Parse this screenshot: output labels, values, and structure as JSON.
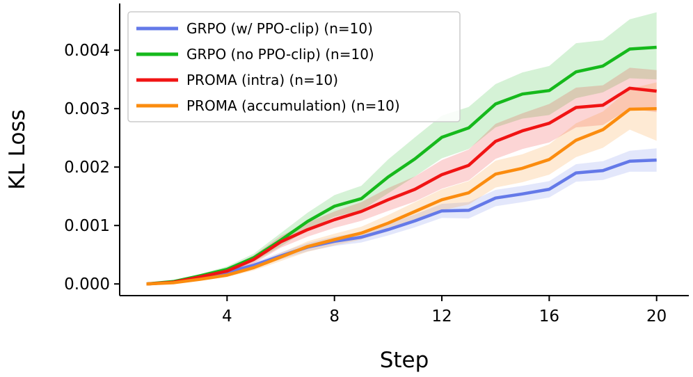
{
  "chart_data": {
    "type": "line",
    "xlabel": "Step",
    "ylabel": "KL Loss",
    "xlim": [
      0,
      21.2
    ],
    "ylim": [
      -0.0002,
      0.0048
    ],
    "xticks": [
      4,
      8,
      12,
      16,
      20
    ],
    "xtick_labels": [
      "4",
      "8",
      "12",
      "16",
      "20"
    ],
    "yticks": [
      0,
      0.001,
      0.002,
      0.003,
      0.004
    ],
    "ytick_labels": [
      "0.000",
      "0.001",
      "0.002",
      "0.003",
      "0.004"
    ],
    "legend_position": "top-left",
    "x": [
      1,
      2,
      3,
      4,
      5,
      6,
      7,
      8,
      9,
      10,
      11,
      12,
      13,
      14,
      15,
      16,
      17,
      18,
      19,
      20
    ],
    "series": [
      {
        "name": "GRPO (w/ PPO-clip) (n=10)",
        "color": "#6479e8",
        "values": [
          0,
          3e-05,
          0.00012,
          0.0002,
          0.00032,
          0.00048,
          0.00063,
          0.00073,
          0.0008,
          0.00093,
          0.00108,
          0.00125,
          0.00126,
          0.00147,
          0.00154,
          0.00162,
          0.0019,
          0.00194,
          0.0021,
          0.00212
        ],
        "lower": [
          0,
          2e-05,
          0.0001,
          0.00016,
          0.00027,
          0.00042,
          0.00056,
          0.00065,
          0.00071,
          0.00083,
          0.00097,
          0.00113,
          0.00112,
          0.00133,
          0.0014,
          0.00148,
          0.00175,
          0.00178,
          0.00192,
          0.00192
        ],
        "upper": [
          0,
          4e-05,
          0.00014,
          0.00024,
          0.00037,
          0.00054,
          0.0007,
          0.00081,
          0.00089,
          0.00103,
          0.00119,
          0.00137,
          0.0014,
          0.00161,
          0.00168,
          0.00176,
          0.00205,
          0.0021,
          0.00228,
          0.00232
        ]
      },
      {
        "name": "GRPO (no PPO-clip) (n=10)",
        "color": "#16b91c",
        "values": [
          0,
          4e-05,
          0.00014,
          0.00025,
          0.00045,
          0.00075,
          0.00107,
          0.00133,
          0.00146,
          0.00183,
          0.00214,
          0.00251,
          0.00267,
          0.00308,
          0.00325,
          0.00331,
          0.00363,
          0.00373,
          0.00402,
          0.00405
        ],
        "lower": [
          0,
          3e-05,
          0.00011,
          0.0002,
          0.00038,
          0.00064,
          0.00093,
          0.00115,
          0.00126,
          0.00155,
          0.00184,
          0.00215,
          0.00231,
          0.00268,
          0.00283,
          0.00289,
          0.00318,
          0.00328,
          0.00352,
          0.0035
        ],
        "upper": [
          0,
          5e-05,
          0.00017,
          0.0003,
          0.00052,
          0.00087,
          0.00122,
          0.00152,
          0.00168,
          0.00213,
          0.00251,
          0.00288,
          0.00303,
          0.00342,
          0.00362,
          0.00373,
          0.00412,
          0.00417,
          0.00453,
          0.00465
        ]
      },
      {
        "name": "PROMA (intra) (n=10)",
        "color": "#f01414",
        "values": [
          0,
          3e-05,
          0.00012,
          0.00022,
          0.00042,
          0.00072,
          0.00093,
          0.0011,
          0.00124,
          0.00144,
          0.00162,
          0.00187,
          0.00203,
          0.00244,
          0.00262,
          0.00275,
          0.00302,
          0.00306,
          0.00335,
          0.0033
        ],
        "lower": [
          0,
          2e-05,
          0.0001,
          0.00018,
          0.00035,
          0.00062,
          0.00081,
          0.00096,
          0.00108,
          0.00125,
          0.00141,
          0.00163,
          0.00177,
          0.00214,
          0.00231,
          0.00242,
          0.00268,
          0.00272,
          0.003,
          0.00294
        ],
        "upper": [
          0,
          4e-05,
          0.00014,
          0.00026,
          0.00049,
          0.00082,
          0.00105,
          0.00124,
          0.0014,
          0.00164,
          0.00184,
          0.00212,
          0.0023,
          0.00274,
          0.00292,
          0.00308,
          0.00336,
          0.0034,
          0.0037,
          0.00366
        ]
      },
      {
        "name": "PROMA (accumulation) (n=10)",
        "color": "#fb8c0f",
        "values": [
          0,
          2e-05,
          8e-05,
          0.00015,
          0.00028,
          0.00046,
          0.00064,
          0.00076,
          0.00087,
          0.00104,
          0.00124,
          0.00144,
          0.00156,
          0.00188,
          0.00198,
          0.00213,
          0.00246,
          0.00264,
          0.00299,
          0.003
        ],
        "lower": [
          0,
          1e-05,
          6e-05,
          0.00012,
          0.00023,
          0.00039,
          0.00055,
          0.00066,
          0.00076,
          0.0009,
          0.00108,
          0.00126,
          0.00136,
          0.00165,
          0.00174,
          0.00187,
          0.00217,
          0.00233,
          0.00264,
          0.00245
        ],
        "upper": [
          0,
          3e-05,
          0.0001,
          0.00018,
          0.00033,
          0.00053,
          0.00073,
          0.00086,
          0.00098,
          0.00118,
          0.0014,
          0.00162,
          0.00176,
          0.00211,
          0.00222,
          0.00239,
          0.00275,
          0.00295,
          0.00334,
          0.00345
        ]
      }
    ]
  }
}
